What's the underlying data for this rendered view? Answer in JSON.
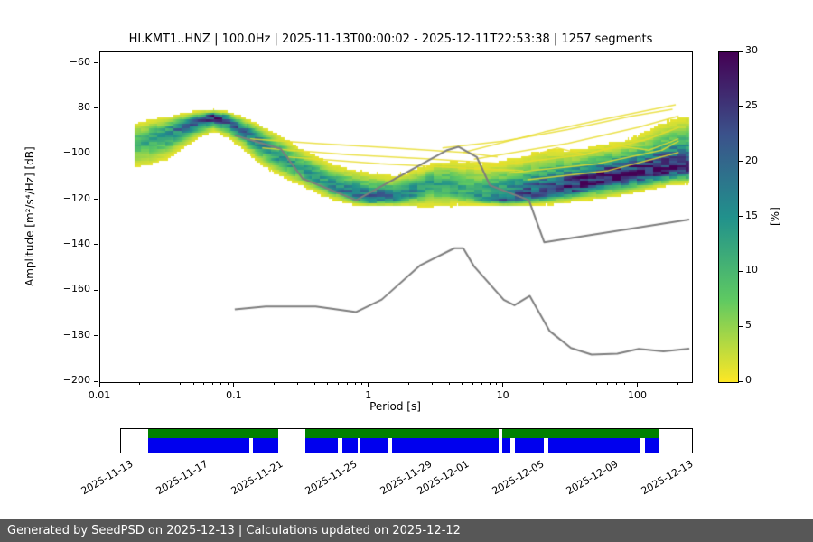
{
  "title": "HI.KMT1..HNZ | 100.0Hz | 2025-11-13T00:00:02 - 2025-12-11T22:53:38 | 1257 segments",
  "plot": {
    "xlabel": "Period [s]",
    "ylabel": "Amplitude [m²/s⁴/Hz] [dB]",
    "x_range": [
      0.01,
      251
    ],
    "y_range": [
      -200,
      -55
    ],
    "x_ticks": [
      {
        "v": 0.01,
        "label": "0.01"
      },
      {
        "v": 0.1,
        "label": "0.1"
      },
      {
        "v": 1,
        "label": "1"
      },
      {
        "v": 10,
        "label": "10"
      },
      {
        "v": 100,
        "label": "100"
      }
    ],
    "y_ticks": [
      {
        "v": -60,
        "label": "−60"
      },
      {
        "v": -80,
        "label": "−80"
      },
      {
        "v": -100,
        "label": "−100"
      },
      {
        "v": -120,
        "label": "−120"
      },
      {
        "v": -140,
        "label": "−140"
      },
      {
        "v": -160,
        "label": "−160"
      },
      {
        "v": -180,
        "label": "−180"
      },
      {
        "v": -200,
        "label": "−200"
      }
    ]
  },
  "colorbar": {
    "label": "[%]",
    "vmin": 0,
    "vmax": 30,
    "ticks": [
      0,
      5,
      10,
      15,
      20,
      25,
      30
    ],
    "stops": [
      "#fde725",
      "#5ec962",
      "#21918c",
      "#3b528b",
      "#440154"
    ]
  },
  "chart_data": {
    "type": "heatmap",
    "description": "PPSD probability density of seismic power spectra; mode ridge with spread, plus Peterson new high/low noise model reference curves",
    "xlim": [
      0.01,
      251
    ],
    "ylim": [
      -200,
      -55
    ],
    "probability_range_percent": [
      0,
      30
    ],
    "ppsd": {
      "periods": [
        0.018,
        0.022,
        0.03,
        0.05,
        0.07,
        0.09,
        0.11,
        0.15,
        0.2,
        0.3,
        0.5,
        0.7,
        1,
        1.5,
        2,
        3,
        4,
        5,
        7,
        10,
        15,
        20,
        30,
        50,
        80,
        120,
        180,
        240
      ],
      "mode_db": [
        -95,
        -94,
        -91,
        -85.5,
        -83.5,
        -85,
        -88,
        -94,
        -99,
        -106,
        -113,
        -117,
        -119.5,
        -119,
        -117,
        -113.5,
        -114,
        -117,
        -119.5,
        -120,
        -118.5,
        -117,
        -114.5,
        -111.5,
        -109.5,
        -108,
        -106.5,
        -106
      ],
      "upper_db": [
        -86,
        -85,
        -84,
        -81.5,
        -80.5,
        -81.5,
        -83.5,
        -87,
        -91,
        -97,
        -104,
        -107,
        -109,
        -110,
        -108,
        -104,
        -103,
        -103,
        -105,
        -104,
        -102,
        -100,
        -100,
        -98,
        -96,
        -92,
        -87,
        -86
      ],
      "lower_db": [
        -106,
        -105,
        -102,
        -93,
        -89,
        -92,
        -96,
        -103,
        -108,
        -113,
        -119,
        -121.5,
        -122.5,
        -122.5,
        -122.5,
        -122.5,
        -122.5,
        -122,
        -122,
        -122.5,
        -122,
        -121.5,
        -120.5,
        -118.5,
        -116.5,
        -114.5,
        -112.5,
        -112
      ],
      "peak_percent": [
        10,
        12,
        14,
        22,
        27,
        22,
        19,
        16,
        15,
        14,
        15,
        18,
        21,
        19,
        16,
        13,
        13,
        12,
        15,
        19,
        22,
        24,
        26,
        28,
        29,
        29,
        27,
        26
      ]
    },
    "noise_models": {
      "color": "#7d7d7d",
      "high": [
        [
          0.1,
          -91.5
        ],
        [
          0.22,
          -97.4
        ],
        [
          0.32,
          -110.5
        ],
        [
          0.8,
          -120
        ],
        [
          3.8,
          -98
        ],
        [
          4.6,
          -96.5
        ],
        [
          6.3,
          -101
        ],
        [
          7.9,
          -113.5
        ],
        [
          15.4,
          -120
        ],
        [
          20,
          -138.5
        ],
        [
          240,
          -128.5
        ]
      ],
      "low": [
        [
          0.1,
          -168
        ],
        [
          0.17,
          -166.7
        ],
        [
          0.4,
          -166.7
        ],
        [
          0.8,
          -169.2
        ],
        [
          1.24,
          -163.7
        ],
        [
          2.4,
          -148.6
        ],
        [
          4.3,
          -141.1
        ],
        [
          5,
          -141.1
        ],
        [
          6,
          -149
        ],
        [
          10,
          -163.8
        ],
        [
          12,
          -166.2
        ],
        [
          15.6,
          -162.1
        ],
        [
          21.9,
          -177.5
        ],
        [
          31.6,
          -185
        ],
        [
          45,
          -187.9
        ],
        [
          70,
          -187.5
        ],
        [
          101,
          -185.4
        ],
        [
          154,
          -186.5
        ],
        [
          240,
          -185.3
        ]
      ]
    },
    "streak_color": "#e8dc2c",
    "streaks": [
      [
        [
          0.13,
          -93
        ],
        [
          0.4,
          -95
        ],
        [
          1.5,
          -97
        ],
        [
          5,
          -99
        ],
        [
          9,
          -101
        ]
      ],
      [
        [
          0.16,
          -97
        ],
        [
          0.7,
          -100
        ],
        [
          3,
          -102
        ],
        [
          10,
          -104
        ]
      ],
      [
        [
          0.25,
          -101
        ],
        [
          1.2,
          -104
        ],
        [
          6,
          -106
        ],
        [
          14,
          -107
        ]
      ],
      [
        [
          5,
          -99
        ],
        [
          20,
          -90
        ],
        [
          60,
          -84
        ],
        [
          190,
          -78
        ]
      ],
      [
        [
          6,
          -102
        ],
        [
          30,
          -95
        ],
        [
          100,
          -88
        ],
        [
          200,
          -83
        ]
      ],
      [
        [
          8,
          -105
        ],
        [
          40,
          -100
        ],
        [
          120,
          -93
        ],
        [
          200,
          -88
        ]
      ],
      [
        [
          11,
          -108
        ],
        [
          50,
          -104
        ],
        [
          150,
          -98
        ],
        [
          200,
          -94
        ]
      ],
      [
        [
          15,
          -111
        ],
        [
          60,
          -107
        ],
        [
          200,
          -99
        ]
      ],
      [
        [
          3.5,
          -97
        ],
        [
          10,
          -94
        ],
        [
          30,
          -89
        ],
        [
          90,
          -83
        ],
        [
          180,
          -80
        ]
      ],
      [
        [
          15,
          -101
        ],
        [
          25,
          -97
        ],
        [
          40,
          -100
        ],
        [
          70,
          -96
        ],
        [
          120,
          -98
        ],
        [
          200,
          -93
        ]
      ]
    ]
  },
  "timeline": {
    "green": "#008000",
    "blue": "#0000ee",
    "green_segments": [
      [
        0.047,
        0.275
      ],
      [
        0.323,
        0.662
      ],
      [
        0.668,
        0.942
      ]
    ],
    "blue_segments": [
      [
        0.047,
        0.225
      ],
      [
        0.231,
        0.275
      ],
      [
        0.323,
        0.38
      ],
      [
        0.388,
        0.414
      ],
      [
        0.42,
        0.466
      ],
      [
        0.474,
        0.662
      ],
      [
        0.668,
        0.682
      ],
      [
        0.69,
        0.74
      ],
      [
        0.748,
        0.908
      ],
      [
        0.917,
        0.942
      ]
    ],
    "ticks": [
      {
        "label": "2025-11-13",
        "f": 0.016
      },
      {
        "label": "2025-11-17",
        "f": 0.147
      },
      {
        "label": "2025-11-21",
        "f": 0.278
      },
      {
        "label": "2025-11-25",
        "f": 0.408
      },
      {
        "label": "2025-11-29",
        "f": 0.539
      },
      {
        "label": "2025-12-01",
        "f": 0.604
      },
      {
        "label": "2025-12-05",
        "f": 0.735
      },
      {
        "label": "2025-12-09",
        "f": 0.866
      },
      {
        "label": "2025-12-13",
        "f": 0.997
      }
    ]
  },
  "footer": {
    "text": "Generated by SeedPSD on 2025-12-13 | Calculations updated on 2025-12-12",
    "bg": "#575757"
  }
}
